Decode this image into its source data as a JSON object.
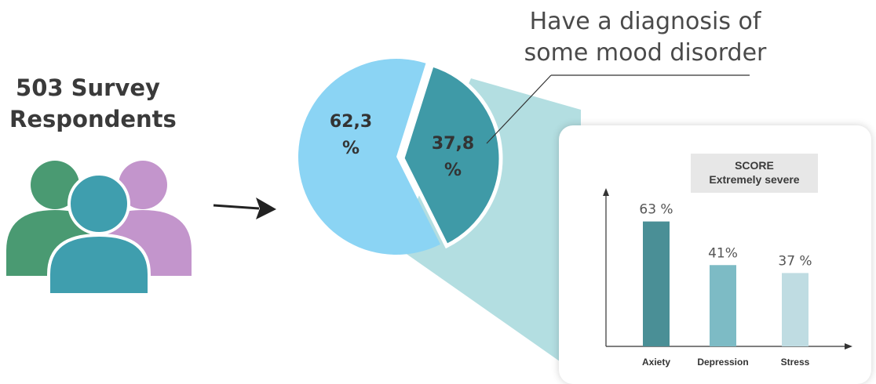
{
  "respondents": {
    "line1": "503 Survey",
    "line2": "Respondents"
  },
  "diagnosis_label": {
    "line1": "Have a diagnosis of",
    "line2": "some mood disorder"
  },
  "icons": {
    "people": "people-group-icon",
    "arrow": "right-arrow-icon"
  },
  "colors": {
    "person_green": "#4a9a72",
    "person_teal": "#3f9eae",
    "person_purple": "#c395cc",
    "pie_light": "#8bd4f4",
    "pie_dark": "#3f9aa7",
    "callout": "#a6d8dc",
    "bar_anxiety": "#4a8f96",
    "bar_depression": "#7dbbc5",
    "bar_stress": "#bfdce2"
  },
  "chart_data": [
    {
      "type": "pie",
      "labels": [
        "62,3\n%",
        "37,8\n%"
      ],
      "values": [
        62.3,
        37.8
      ],
      "label_lines": [
        [
          "62,3",
          "%"
        ],
        [
          "37,8",
          "%"
        ]
      ],
      "colors": [
        "#8bd4f4",
        "#3f9aa7"
      ]
    },
    {
      "type": "bar",
      "title": "SCORE",
      "subtitle": "Extremely severe",
      "categories": [
        "Axiety",
        "Depression",
        "Stress"
      ],
      "values": [
        63,
        41,
        37
      ],
      "value_labels": [
        "63 %",
        "41%",
        "37 %"
      ],
      "ylim": [
        0,
        100
      ],
      "xlabel": "",
      "ylabel": "",
      "grid": false,
      "colors": [
        "#4a8f96",
        "#7dbbc5",
        "#bfdce2"
      ]
    }
  ]
}
